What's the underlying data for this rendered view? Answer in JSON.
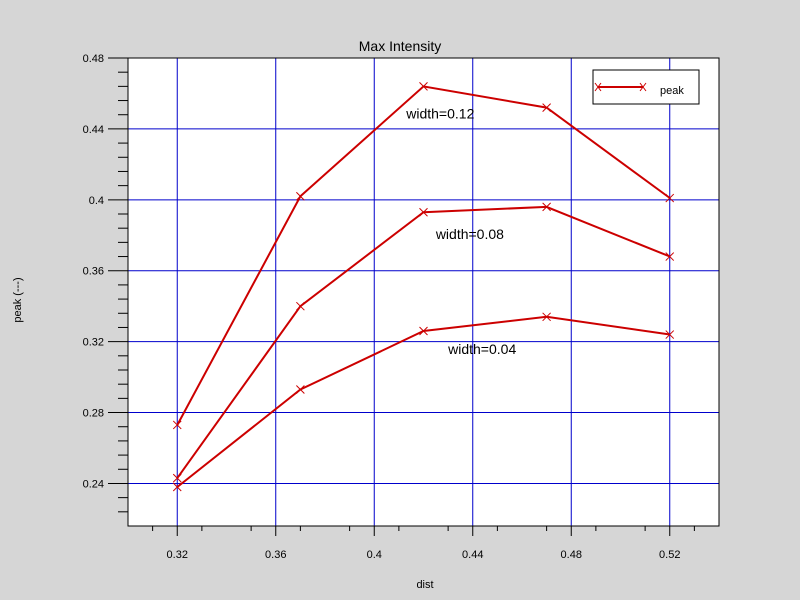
{
  "chart_data": {
    "type": "line",
    "title": "Max Intensity",
    "xlabel": "dist",
    "ylabel": "peak (---)",
    "xlim": [
      0.3,
      0.54
    ],
    "ylim": [
      0.216,
      0.48
    ],
    "xticks": [
      0.32,
      0.36,
      0.4,
      0.44,
      0.48,
      0.52
    ],
    "xtick_labels": [
      "0.32",
      "0.36",
      "0.4",
      "0.44",
      "0.48",
      "0.52"
    ],
    "yticks": [
      0.24,
      0.28,
      0.32,
      0.36,
      0.4,
      0.44,
      0.48
    ],
    "ytick_labels": [
      "0.24",
      "0.28",
      "0.32",
      "0.36",
      "0.4",
      "0.44",
      "0.48"
    ],
    "grid": true,
    "legend_position": "top-right",
    "legend": [
      {
        "label": "peak",
        "color": "#cc0000",
        "marker": "x"
      }
    ],
    "series": [
      {
        "x": [
          0.32,
          0.37,
          0.42,
          0.47,
          0.52
        ],
        "values": [
          0.273,
          0.402,
          0.464,
          0.452,
          0.401
        ],
        "color": "#cc0000"
      },
      {
        "x": [
          0.32,
          0.37,
          0.42,
          0.47,
          0.52
        ],
        "values": [
          0.243,
          0.34,
          0.393,
          0.396,
          0.368
        ],
        "color": "#cc0000"
      },
      {
        "x": [
          0.32,
          0.37,
          0.42,
          0.47,
          0.52
        ],
        "values": [
          0.238,
          0.293,
          0.326,
          0.334,
          0.324
        ],
        "color": "#cc0000"
      }
    ],
    "annotations": [
      {
        "text": "width=0.12",
        "x": 0.413,
        "y": 0.446
      },
      {
        "text": "width=0.08",
        "x": 0.425,
        "y": 0.378
      },
      {
        "text": "width=0.04",
        "x": 0.43,
        "y": 0.313
      }
    ],
    "colors": {
      "grid": "#0000cc",
      "background": "#ffffff",
      "page": "#d6d6d6",
      "axis": "#000000"
    }
  }
}
